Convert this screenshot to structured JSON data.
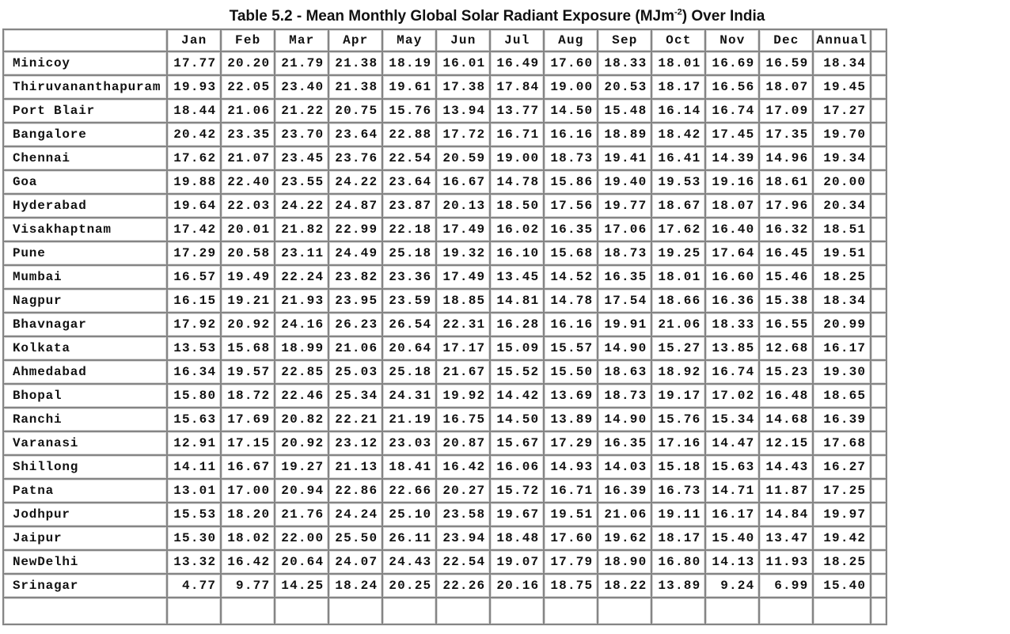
{
  "table": {
    "title_prefix": "Table 5.2 - Mean Monthly Global Solar Radiant Exposure (MJm",
    "title_exponent": "-2",
    "title_suffix": ") Over India",
    "columns": [
      "",
      "Jan",
      "Feb",
      "Mar",
      "Apr",
      "May",
      "Jun",
      "Jul",
      "Aug",
      "Sep",
      "Oct",
      "Nov",
      "Dec",
      "Annual",
      ""
    ],
    "rows": [
      {
        "station": "Minicoy",
        "values": [
          "17.77",
          "20.20",
          "21.79",
          "21.38",
          "18.19",
          "16.01",
          "16.49",
          "17.60",
          "18.33",
          "18.01",
          "16.69",
          "16.59",
          "18.34"
        ]
      },
      {
        "station": "Thiruvananthapuram",
        "values": [
          "19.93",
          "22.05",
          "23.40",
          "21.38",
          "19.61",
          "17.38",
          "17.84",
          "19.00",
          "20.53",
          "18.17",
          "16.56",
          "18.07",
          "19.45"
        ]
      },
      {
        "station": "Port Blair",
        "values": [
          "18.44",
          "21.06",
          "21.22",
          "20.75",
          "15.76",
          "13.94",
          "13.77",
          "14.50",
          "15.48",
          "16.14",
          "16.74",
          "17.09",
          "17.27"
        ]
      },
      {
        "station": "Bangalore",
        "values": [
          "20.42",
          "23.35",
          "23.70",
          "23.64",
          "22.88",
          "17.72",
          "16.71",
          "16.16",
          "18.89",
          "18.42",
          "17.45",
          "17.35",
          "19.70"
        ]
      },
      {
        "station": "Chennai",
        "values": [
          "17.62",
          "21.07",
          "23.45",
          "23.76",
          "22.54",
          "20.59",
          "19.00",
          "18.73",
          "19.41",
          "16.41",
          "14.39",
          "14.96",
          "19.34"
        ]
      },
      {
        "station": "Goa",
        "values": [
          "19.88",
          "22.40",
          "23.55",
          "24.22",
          "23.64",
          "16.67",
          "14.78",
          "15.86",
          "19.40",
          "19.53",
          "19.16",
          "18.61",
          "20.00"
        ]
      },
      {
        "station": "Hyderabad",
        "values": [
          "19.64",
          "22.03",
          "24.22",
          "24.87",
          "23.87",
          "20.13",
          "18.50",
          "17.56",
          "19.77",
          "18.67",
          "18.07",
          "17.96",
          "20.34"
        ]
      },
      {
        "station": "Visakhaptnam",
        "values": [
          "17.42",
          "20.01",
          "21.82",
          "22.99",
          "22.18",
          "17.49",
          "16.02",
          "16.35",
          "17.06",
          "17.62",
          "16.40",
          "16.32",
          "18.51"
        ]
      },
      {
        "station": "Pune",
        "values": [
          "17.29",
          "20.58",
          "23.11",
          "24.49",
          "25.18",
          "19.32",
          "16.10",
          "15.68",
          "18.73",
          "19.25",
          "17.64",
          "16.45",
          "19.51"
        ]
      },
      {
        "station": "Mumbai",
        "values": [
          "16.57",
          "19.49",
          "22.24",
          "23.82",
          "23.36",
          "17.49",
          "13.45",
          "14.52",
          "16.35",
          "18.01",
          "16.60",
          "15.46",
          "18.25"
        ]
      },
      {
        "station": "Nagpur",
        "values": [
          "16.15",
          "19.21",
          "21.93",
          "23.95",
          "23.59",
          "18.85",
          "14.81",
          "14.78",
          "17.54",
          "18.66",
          "16.36",
          "15.38",
          "18.34"
        ]
      },
      {
        "station": "Bhavnagar",
        "values": [
          "17.92",
          "20.92",
          "24.16",
          "26.23",
          "26.54",
          "22.31",
          "16.28",
          "16.16",
          "19.91",
          "21.06",
          "18.33",
          "16.55",
          "20.99"
        ]
      },
      {
        "station": "Kolkata",
        "values": [
          "13.53",
          "15.68",
          "18.99",
          "21.06",
          "20.64",
          "17.17",
          "15.09",
          "15.57",
          "14.90",
          "15.27",
          "13.85",
          "12.68",
          "16.17"
        ]
      },
      {
        "station": "Ahmedabad",
        "values": [
          "16.34",
          "19.57",
          "22.85",
          "25.03",
          "25.18",
          "21.67",
          "15.52",
          "15.50",
          "18.63",
          "18.92",
          "16.74",
          "15.23",
          "19.30"
        ]
      },
      {
        "station": "Bhopal",
        "values": [
          "15.80",
          "18.72",
          "22.46",
          "25.34",
          "24.31",
          "19.92",
          "14.42",
          "13.69",
          "18.73",
          "19.17",
          "17.02",
          "16.48",
          "18.65"
        ]
      },
      {
        "station": "Ranchi",
        "values": [
          "15.63",
          "17.69",
          "20.82",
          "22.21",
          "21.19",
          "16.75",
          "14.50",
          "13.89",
          "14.90",
          "15.76",
          "15.34",
          "14.68",
          "16.39"
        ]
      },
      {
        "station": "Varanasi",
        "values": [
          "12.91",
          "17.15",
          "20.92",
          "23.12",
          "23.03",
          "20.87",
          "15.67",
          "17.29",
          "16.35",
          "17.16",
          "14.47",
          "12.15",
          "17.68"
        ]
      },
      {
        "station": "Shillong",
        "values": [
          "14.11",
          "16.67",
          "19.27",
          "21.13",
          "18.41",
          "16.42",
          "16.06",
          "14.93",
          "14.03",
          "15.18",
          "15.63",
          "14.43",
          "16.27"
        ]
      },
      {
        "station": "Patna",
        "values": [
          "13.01",
          "17.00",
          "20.94",
          "22.86",
          "22.66",
          "20.27",
          "15.72",
          "16.71",
          "16.39",
          "16.73",
          "14.71",
          "11.87",
          "17.25"
        ]
      },
      {
        "station": "Jodhpur",
        "values": [
          "15.53",
          "18.20",
          "21.76",
          "24.24",
          "25.10",
          "23.58",
          "19.67",
          "19.51",
          "21.06",
          "19.11",
          "16.17",
          "14.84",
          "19.97"
        ]
      },
      {
        "station": "Jaipur",
        "values": [
          "15.30",
          "18.02",
          "22.00",
          "25.50",
          "26.11",
          "23.94",
          "18.48",
          "17.60",
          "19.62",
          "18.17",
          "15.40",
          "13.47",
          "19.42"
        ]
      },
      {
        "station": "NewDelhi",
        "values": [
          "13.32",
          "16.42",
          "20.64",
          "24.07",
          "24.43",
          "22.54",
          "19.07",
          "17.79",
          "18.90",
          "16.80",
          "14.13",
          "11.93",
          "18.25"
        ]
      },
      {
        "station": "Srinagar",
        "values": [
          "4.77",
          "9.77",
          "14.25",
          "18.24",
          "20.25",
          "22.26",
          "20.16",
          "18.75",
          "18.22",
          "13.89",
          "9.24",
          "6.99",
          "15.40"
        ]
      }
    ]
  }
}
